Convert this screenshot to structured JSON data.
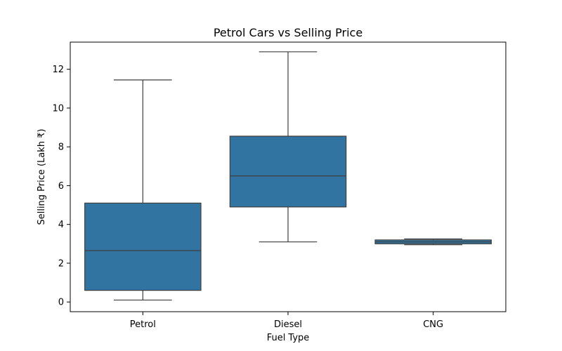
{
  "chart_data": {
    "type": "box",
    "title": "Petrol Cars vs Selling Price",
    "xlabel": "Fuel Type",
    "ylabel": "Selling Price (Lakh ₹)",
    "ylim": [
      -0.5,
      13.4
    ],
    "yticks": [
      0,
      2,
      4,
      6,
      8,
      10,
      12
    ],
    "grid": false,
    "categories": [
      "Petrol",
      "Diesel",
      "CNG"
    ],
    "boxes": [
      {
        "category": "Petrol",
        "whisker_low": 0.1,
        "q1": 0.6,
        "median": 2.65,
        "q3": 5.1,
        "whisker_high": 11.45
      },
      {
        "category": "Diesel",
        "whisker_low": 3.1,
        "q1": 4.9,
        "median": 6.5,
        "q3": 8.55,
        "whisker_high": 12.9
      },
      {
        "category": "CNG",
        "whisker_low": 2.95,
        "q1": 3.0,
        "median": 3.1,
        "q3": 3.2,
        "whisker_high": 3.25
      }
    ],
    "colors": {
      "box_fill": "#3274a1",
      "line": "#3f3f3f",
      "axis": "#000000"
    }
  }
}
